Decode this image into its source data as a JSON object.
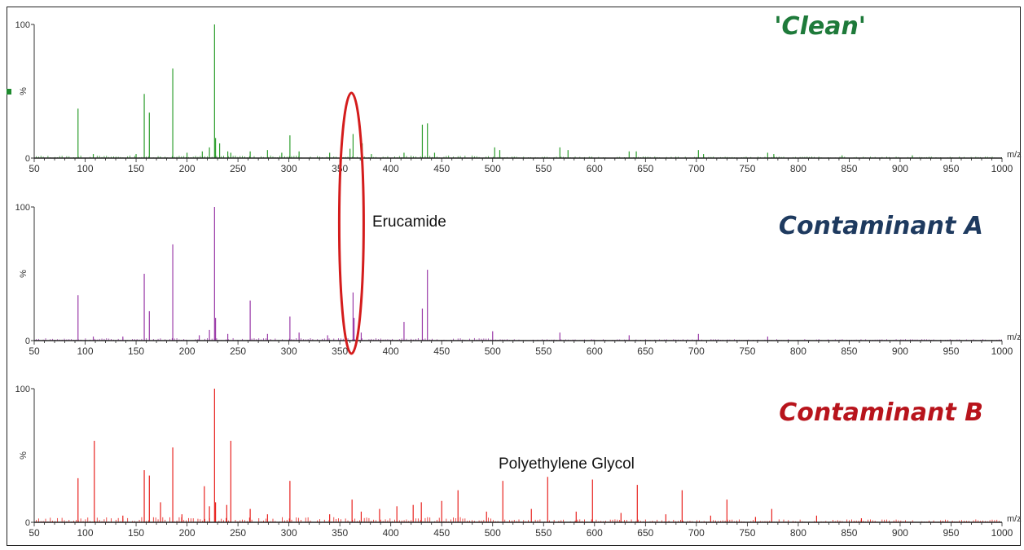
{
  "chart_data": [
    {
      "type": "bar",
      "title": "'Clean'",
      "color": "#2e9e2e",
      "title_color": "#1e7a3a",
      "xlabel": "m/z",
      "ylabel": "%",
      "xlim": [
        50,
        1000
      ],
      "ylim": [
        0,
        100
      ],
      "x_ticks": [
        50,
        100,
        150,
        200,
        250,
        300,
        350,
        400,
        450,
        500,
        550,
        600,
        650,
        700,
        750,
        800,
        850,
        900,
        950,
        1000
      ],
      "y_ticks": [
        0,
        100
      ],
      "peaks": [
        {
          "x": 93,
          "y": 37
        },
        {
          "x": 108,
          "y": 3
        },
        {
          "x": 150,
          "y": 3
        },
        {
          "x": 158,
          "y": 48
        },
        {
          "x": 163,
          "y": 34
        },
        {
          "x": 186,
          "y": 67
        },
        {
          "x": 200,
          "y": 4
        },
        {
          "x": 215,
          "y": 5
        },
        {
          "x": 222,
          "y": 8
        },
        {
          "x": 227,
          "y": 100
        },
        {
          "x": 228,
          "y": 15
        },
        {
          "x": 232,
          "y": 11
        },
        {
          "x": 240,
          "y": 5
        },
        {
          "x": 243,
          "y": 4
        },
        {
          "x": 262,
          "y": 5
        },
        {
          "x": 279,
          "y": 6
        },
        {
          "x": 293,
          "y": 4
        },
        {
          "x": 301,
          "y": 17
        },
        {
          "x": 310,
          "y": 5
        },
        {
          "x": 340,
          "y": 4
        },
        {
          "x": 360,
          "y": 7
        },
        {
          "x": 363,
          "y": 18
        },
        {
          "x": 372,
          "y": 11
        },
        {
          "x": 381,
          "y": 3
        },
        {
          "x": 413,
          "y": 4
        },
        {
          "x": 431,
          "y": 25
        },
        {
          "x": 436,
          "y": 26
        },
        {
          "x": 443,
          "y": 4
        },
        {
          "x": 502,
          "y": 8
        },
        {
          "x": 507,
          "y": 6
        },
        {
          "x": 566,
          "y": 8
        },
        {
          "x": 574,
          "y": 6
        },
        {
          "x": 634,
          "y": 5
        },
        {
          "x": 641,
          "y": 5
        },
        {
          "x": 702,
          "y": 6
        },
        {
          "x": 707,
          "y": 3
        },
        {
          "x": 770,
          "y": 4
        },
        {
          "x": 776,
          "y": 3
        },
        {
          "x": 843,
          "y": 2
        },
        {
          "x": 912,
          "y": 2
        }
      ]
    },
    {
      "type": "bar",
      "title": "Contaminant A",
      "color": "#9a3aa8",
      "title_color": "#1e3a5f",
      "xlabel": "m/z",
      "ylabel": "%",
      "xlim": [
        50,
        1000
      ],
      "ylim": [
        0,
        100
      ],
      "x_ticks": [
        50,
        100,
        150,
        200,
        250,
        300,
        350,
        400,
        450,
        500,
        550,
        600,
        650,
        700,
        750,
        800,
        850,
        900,
        950,
        1000
      ],
      "y_ticks": [
        0,
        100
      ],
      "annotation": "Erucamide",
      "peaks": [
        {
          "x": 93,
          "y": 34
        },
        {
          "x": 108,
          "y": 3
        },
        {
          "x": 137,
          "y": 3
        },
        {
          "x": 158,
          "y": 50
        },
        {
          "x": 163,
          "y": 22
        },
        {
          "x": 186,
          "y": 72
        },
        {
          "x": 212,
          "y": 4
        },
        {
          "x": 222,
          "y": 8
        },
        {
          "x": 227,
          "y": 100
        },
        {
          "x": 228,
          "y": 17
        },
        {
          "x": 240,
          "y": 5
        },
        {
          "x": 262,
          "y": 30
        },
        {
          "x": 279,
          "y": 5
        },
        {
          "x": 301,
          "y": 18
        },
        {
          "x": 310,
          "y": 6
        },
        {
          "x": 338,
          "y": 4
        },
        {
          "x": 363,
          "y": 36
        },
        {
          "x": 364,
          "y": 17
        },
        {
          "x": 371,
          "y": 6
        },
        {
          "x": 413,
          "y": 14
        },
        {
          "x": 431,
          "y": 24
        },
        {
          "x": 436,
          "y": 53
        },
        {
          "x": 500,
          "y": 7
        },
        {
          "x": 566,
          "y": 6
        },
        {
          "x": 634,
          "y": 4
        },
        {
          "x": 702,
          "y": 5
        },
        {
          "x": 770,
          "y": 3
        }
      ]
    },
    {
      "type": "bar",
      "title": "Contaminant B",
      "color": "#e8221e",
      "title_color": "#b8141c",
      "xlabel": "m/z",
      "ylabel": "%",
      "xlim": [
        50,
        1000
      ],
      "ylim": [
        0,
        100
      ],
      "x_ticks": [
        50,
        100,
        150,
        200,
        250,
        300,
        350,
        400,
        450,
        500,
        550,
        600,
        650,
        700,
        750,
        800,
        850,
        900,
        950,
        1000
      ],
      "y_ticks": [
        0,
        100
      ],
      "annotation": "Polyethylene Glycol",
      "peaks": [
        {
          "x": 93,
          "y": 33
        },
        {
          "x": 109,
          "y": 61
        },
        {
          "x": 137,
          "y": 5
        },
        {
          "x": 158,
          "y": 39
        },
        {
          "x": 163,
          "y": 35
        },
        {
          "x": 174,
          "y": 15
        },
        {
          "x": 186,
          "y": 56
        },
        {
          "x": 195,
          "y": 6
        },
        {
          "x": 217,
          "y": 27
        },
        {
          "x": 222,
          "y": 12
        },
        {
          "x": 227,
          "y": 100
        },
        {
          "x": 228,
          "y": 15
        },
        {
          "x": 239,
          "y": 13
        },
        {
          "x": 243,
          "y": 61
        },
        {
          "x": 262,
          "y": 10
        },
        {
          "x": 279,
          "y": 6
        },
        {
          "x": 301,
          "y": 31
        },
        {
          "x": 340,
          "y": 6
        },
        {
          "x": 362,
          "y": 17
        },
        {
          "x": 371,
          "y": 8
        },
        {
          "x": 389,
          "y": 10
        },
        {
          "x": 406,
          "y": 12
        },
        {
          "x": 422,
          "y": 13
        },
        {
          "x": 430,
          "y": 15
        },
        {
          "x": 450,
          "y": 16
        },
        {
          "x": 466,
          "y": 24
        },
        {
          "x": 494,
          "y": 8
        },
        {
          "x": 510,
          "y": 31
        },
        {
          "x": 538,
          "y": 10
        },
        {
          "x": 554,
          "y": 34
        },
        {
          "x": 582,
          "y": 8
        },
        {
          "x": 598,
          "y": 32
        },
        {
          "x": 626,
          "y": 7
        },
        {
          "x": 642,
          "y": 28
        },
        {
          "x": 670,
          "y": 6
        },
        {
          "x": 686,
          "y": 24
        },
        {
          "x": 714,
          "y": 5
        },
        {
          "x": 730,
          "y": 17
        },
        {
          "x": 758,
          "y": 4
        },
        {
          "x": 774,
          "y": 10
        },
        {
          "x": 818,
          "y": 5
        },
        {
          "x": 862,
          "y": 3
        }
      ]
    }
  ]
}
